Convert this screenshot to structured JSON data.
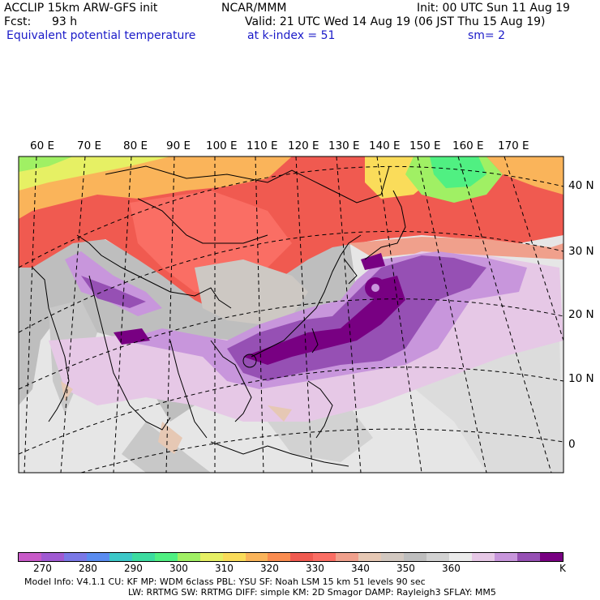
{
  "header": {
    "model": "ACCLIP 15km ARW-GFS init",
    "center": "NCAR/MMM",
    "init": "Init: 00 UTC Sun 11 Aug 19",
    "fcst_label": "Fcst:",
    "fcst_value": "93 h",
    "valid": "Valid: 21 UTC Wed 14 Aug 19 (06 JST Thu 15 Aug 19)",
    "field": "Equivalent potential temperature",
    "level": "at k-index =  51",
    "smooth": "sm= 2"
  },
  "map": {
    "lon_labels": [
      "60 E",
      "70 E",
      "80 E",
      "90 E",
      "100 E",
      "110 E",
      "120 E",
      "130 E",
      "140 E",
      "150 E",
      "160 E",
      "170 E"
    ],
    "lat_labels": [
      "40 N",
      "30 N",
      "20 N",
      "10 N",
      "0"
    ]
  },
  "colorbar": {
    "colors": [
      "#c85ac8",
      "#a05ad2",
      "#7a78e6",
      "#5a8cf0",
      "#3cc8c8",
      "#3cdca0",
      "#50f082",
      "#a0f064",
      "#e6f064",
      "#fadc5a",
      "#fab45a",
      "#fa8c50",
      "#f05a50",
      "#fa6e64",
      "#f0a08c",
      "#e6c8b4",
      "#d2c8c0",
      "#bebebe",
      "#d2d2d2",
      "#ebebeb",
      "#e6c8e6",
      "#c896dc",
      "#9650b4",
      "#780082"
    ],
    "labels": [
      "270",
      "280",
      "290",
      "300",
      "310",
      "320",
      "330",
      "340",
      "350",
      "360",
      "K"
    ]
  },
  "footer": {
    "line1": "Model Info: V4.1.1      CU: KF        MP: WDM 6class   PBL: YSU        SF: Noah LSM     15 km    51 levels   90 sec",
    "line2": "LW: RRTMG     SW: RRTMG   DIFF: simple KM: 2D Smagor DAMP: Rayleigh3  SFLAY: MM5"
  }
}
